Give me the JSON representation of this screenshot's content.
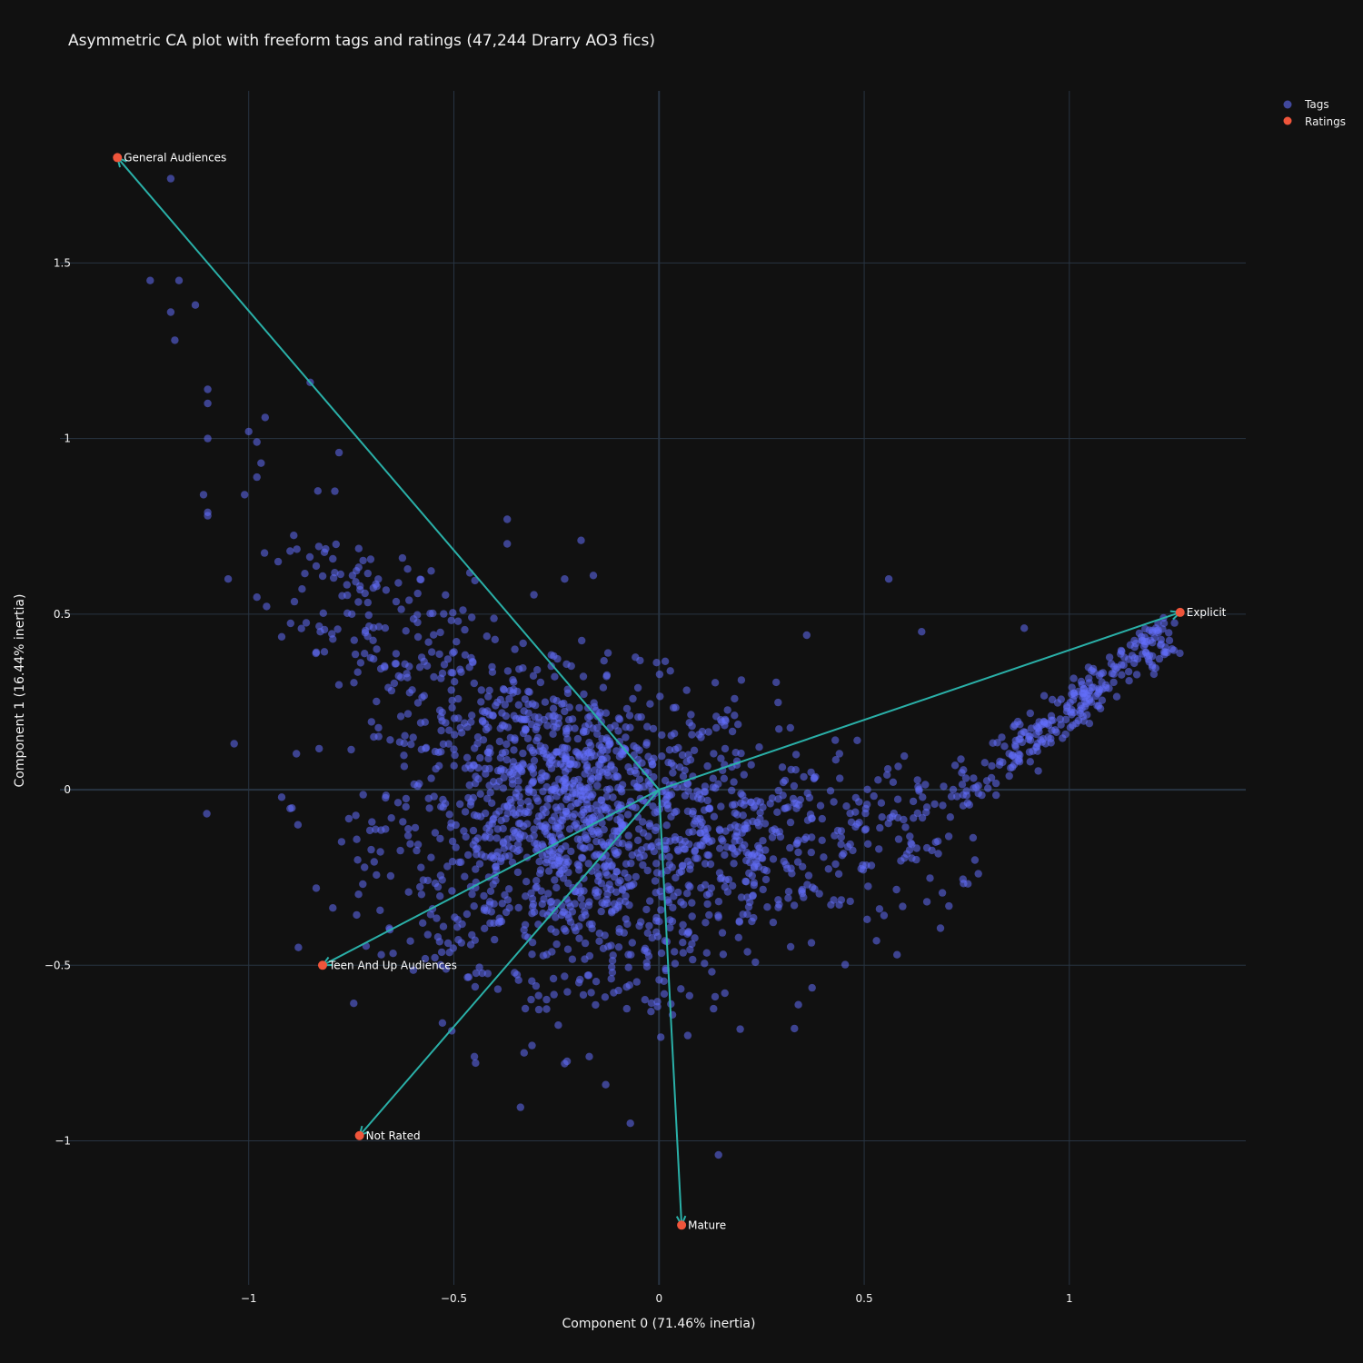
{
  "chart_data": {
    "type": "scatter",
    "title": "Asymmetric CA plot with freeform tags and ratings (47,244 Drarry AO3 fics)",
    "xlabel": "Component 0 (71.46% inertia)",
    "ylabel": "Component 1 (16.44% inertia)",
    "xlim": [
      -1.46,
      1.43
    ],
    "ylim": [
      -1.41,
      1.99
    ],
    "x_ticks": [
      -1,
      -0.5,
      0,
      0.5,
      1
    ],
    "x_tick_labels": [
      "−1",
      "−0.5",
      "0",
      "0.5",
      "1"
    ],
    "y_ticks": [
      -1,
      -0.5,
      0,
      0.5,
      1,
      1.5
    ],
    "y_tick_labels": [
      "−1",
      "−0.5",
      "0",
      "0.5",
      "1",
      "1.5"
    ],
    "grid": true,
    "legend_position": "top-right",
    "legend": [
      "Tags",
      "Ratings"
    ],
    "colors": {
      "tags": "#636efa",
      "ratings": "#ef553b",
      "arrows": "#2ab0a8",
      "background": "#111111",
      "grid": "#283442"
    },
    "ratings": [
      {
        "label": "General Audiences",
        "x": -1.32,
        "y": 1.8
      },
      {
        "label": "Explicit",
        "x": 1.27,
        "y": 0.505
      },
      {
        "label": "Teen And Up Audiences",
        "x": -0.82,
        "y": -0.5
      },
      {
        "label": "Not Rated",
        "x": -0.73,
        "y": -0.985
      },
      {
        "label": "Mature",
        "x": 0.055,
        "y": -1.24
      }
    ],
    "tags_scatter": {
      "approx_point_count": 2000,
      "notable_points": [
        [
          -1.19,
          1.74
        ],
        [
          -1.24,
          1.45
        ],
        [
          -1.17,
          1.45
        ],
        [
          -1.13,
          1.38
        ],
        [
          -1.19,
          1.36
        ],
        [
          -1.18,
          1.28
        ],
        [
          -0.85,
          1.16
        ],
        [
          -1.1,
          1.14
        ],
        [
          -1.1,
          1.1
        ],
        [
          -0.96,
          1.06
        ],
        [
          -1.0,
          1.02
        ],
        [
          -1.1,
          1.0
        ],
        [
          -0.98,
          0.99
        ],
        [
          -0.78,
          0.96
        ],
        [
          -0.97,
          0.93
        ],
        [
          -0.98,
          0.89
        ],
        [
          -1.01,
          0.84
        ],
        [
          -1.11,
          0.84
        ],
        [
          -0.79,
          0.85
        ],
        [
          -1.1,
          0.79
        ],
        [
          -1.1,
          0.78
        ],
        [
          -1.05,
          0.6
        ],
        [
          -0.37,
          0.77
        ],
        [
          -0.37,
          0.7
        ],
        [
          -0.19,
          0.71
        ],
        [
          0.56,
          0.6
        ],
        [
          0.89,
          0.46
        ],
        [
          0.64,
          0.45
        ],
        [
          0.36,
          0.44
        ],
        [
          -0.16,
          0.61
        ],
        [
          -0.23,
          0.6
        ],
        [
          0.33,
          -0.68
        ],
        [
          -0.07,
          -0.95
        ],
        [
          -0.13,
          -0.84
        ],
        [
          0.145,
          -1.04
        ],
        [
          -0.45,
          -0.76
        ],
        [
          -0.23,
          -0.78
        ],
        [
          -0.17,
          -0.76
        ],
        [
          0.07,
          -0.7
        ],
        [
          0.58,
          -0.47
        ],
        [
          0.53,
          -0.43
        ],
        [
          -0.88,
          -0.1
        ]
      ]
    }
  }
}
